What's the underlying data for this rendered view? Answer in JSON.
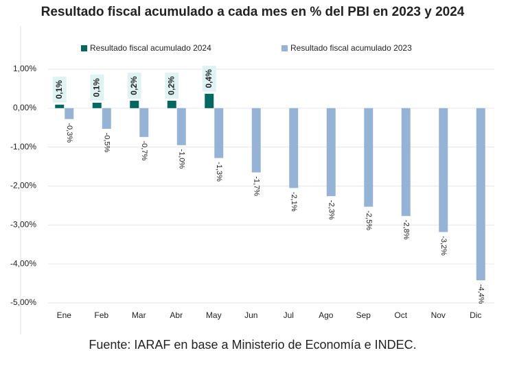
{
  "chart_data": {
    "type": "bar",
    "title": "Resultado fiscal acumulado a cada mes en % del PBI en 2023 y 2024",
    "source": "Fuente: IARAF en base a Ministerio de Economía e INDEC.",
    "categories": [
      "Ene",
      "Feb",
      "Mar",
      "Abr",
      "May",
      "Jun",
      "Jul",
      "Ago",
      "Sep",
      "Oct",
      "Nov",
      "Dic"
    ],
    "series": [
      {
        "name": "Resultado fiscal acumulado 2024",
        "color": "#00695f",
        "values": [
          0.09,
          0.14,
          0.19,
          0.19,
          0.37,
          null,
          null,
          null,
          null,
          null,
          null,
          null
        ],
        "value_labels": [
          "0,1%",
          "0,1%",
          "0,2%",
          "0,2%",
          "0,4%",
          null,
          null,
          null,
          null,
          null,
          null,
          null
        ]
      },
      {
        "name": "Resultado fiscal acumulado 2023",
        "color": "#95b3d7",
        "values": [
          -0.28,
          -0.53,
          -0.74,
          -0.95,
          -1.28,
          -1.65,
          -2.05,
          -2.26,
          -2.53,
          -2.77,
          -3.18,
          -4.42
        ],
        "value_labels": [
          "-0,3%",
          "-0,5%",
          "-0,7%",
          "-1,0%",
          "-1,3%",
          "-1,7%",
          "-2,1%",
          "-2,3%",
          "-2,5%",
          "-2,8%",
          "-3,2%",
          "-4,4%"
        ]
      }
    ],
    "ylim": [
      -5,
      1
    ],
    "yticks": [
      {
        "value": 1,
        "label": "1,00%"
      },
      {
        "value": 0,
        "label": "0,00%"
      },
      {
        "value": -1,
        "label": "-1,00%"
      },
      {
        "value": -2,
        "label": "-2,00%"
      },
      {
        "value": -3,
        "label": "-3,00%"
      },
      {
        "value": -4,
        "label": "-4,00%"
      },
      {
        "value": -5,
        "label": "-5,00%"
      }
    ],
    "grid": true
  }
}
